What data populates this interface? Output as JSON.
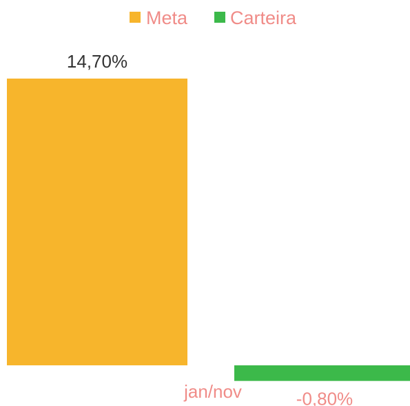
{
  "chart_data": {
    "type": "bar",
    "categories": [
      "jan/nov"
    ],
    "series": [
      {
        "name": "Meta",
        "values": [
          14.7
        ],
        "label": "14,70%",
        "color": "#F7B52C"
      },
      {
        "name": "Carteira",
        "values": [
          -0.8
        ],
        "label": "-0,80%",
        "color": "#3CB94A"
      }
    ],
    "title": "",
    "xlabel": "",
    "ylabel": "",
    "legend_position": "top",
    "grid": false,
    "label_color": "#F08C88",
    "value_label_color": "#333333"
  }
}
